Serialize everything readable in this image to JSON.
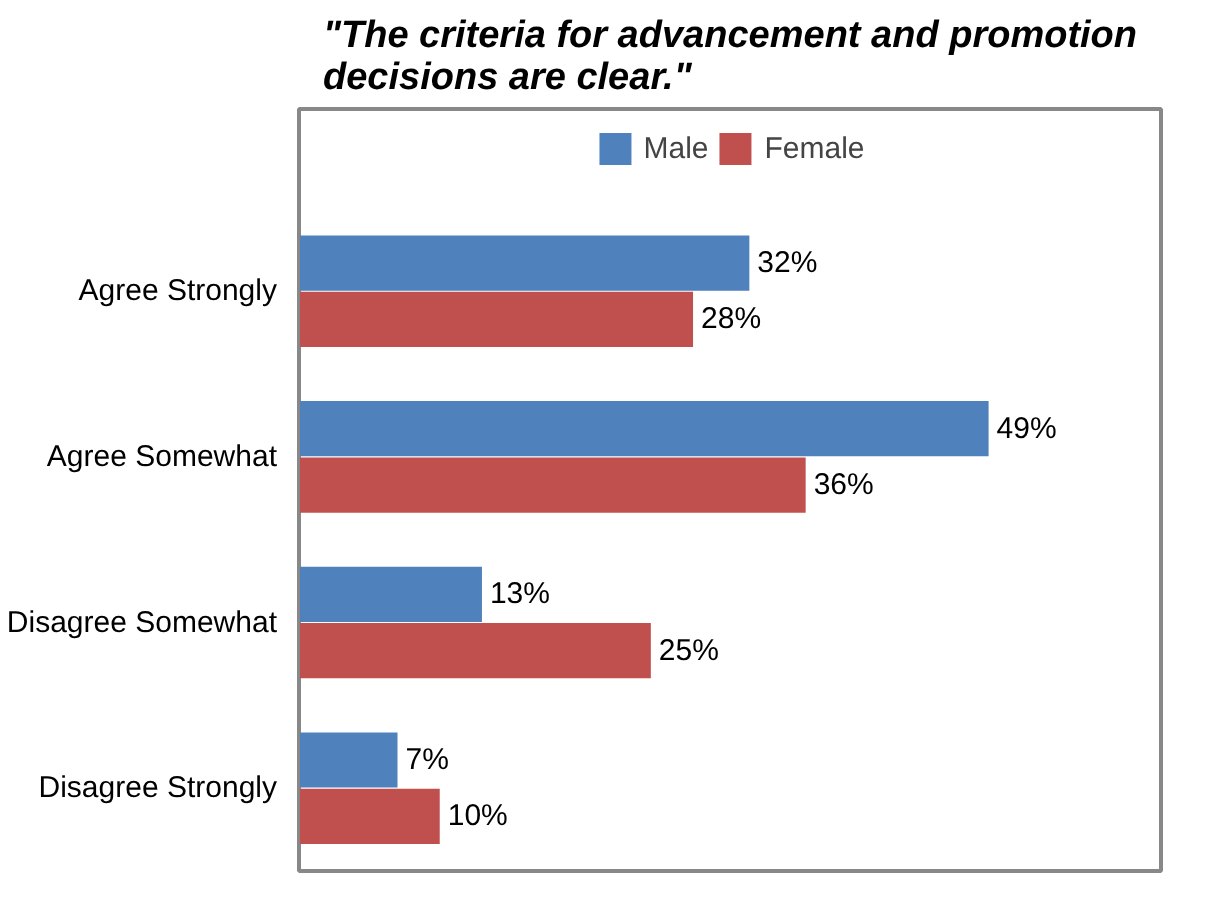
{
  "chart_data": {
    "type": "bar",
    "orientation": "horizontal",
    "title": "\"The criteria for advancement and promotion decisions are clear.\"",
    "categories": [
      "Agree Strongly",
      "Agree Somewhat",
      "Disagree Somewhat",
      "Disagree Strongly"
    ],
    "series": [
      {
        "name": "Male",
        "color": "#4f81bd",
        "values": [
          32,
          49,
          13,
          7
        ],
        "value_labels": [
          "32%",
          "49%",
          "13%",
          "7%"
        ]
      },
      {
        "name": "Female",
        "color": "#c0504d",
        "values": [
          28,
          36,
          25,
          10
        ],
        "value_labels": [
          "28%",
          "36%",
          "25%",
          "10%"
        ]
      }
    ],
    "legend": "top",
    "grid": false,
    "tick_labels": "y"
  }
}
